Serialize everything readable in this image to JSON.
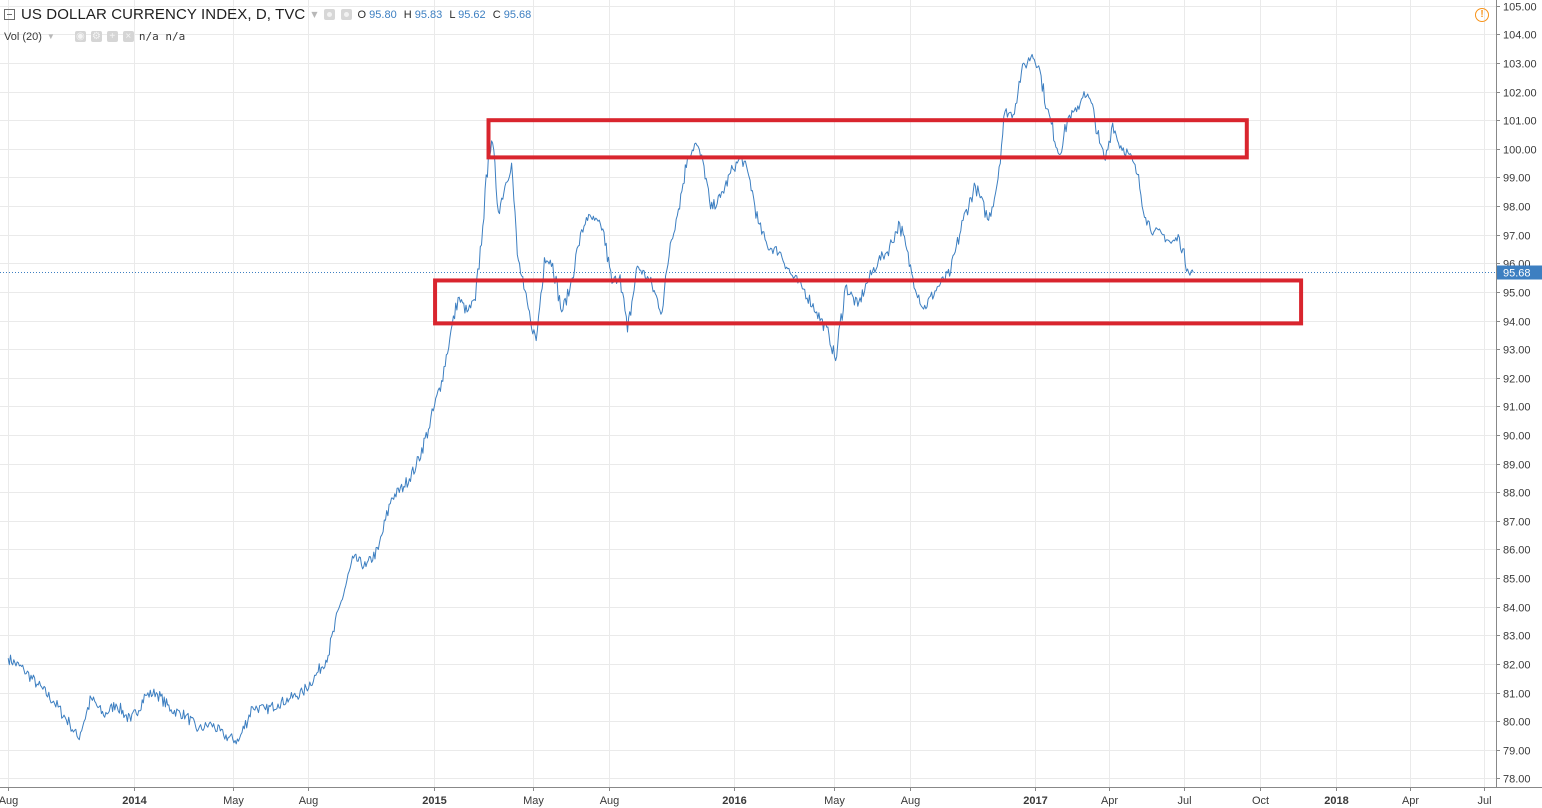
{
  "header": {
    "title": "US DOLLAR CURRENCY INDEX, D, TVC",
    "ohlc": {
      "o_label": "O",
      "o_value": "95.80",
      "h_label": "H",
      "h_value": "95.83",
      "l_label": "L",
      "l_value": "95.62",
      "c_label": "C",
      "c_value": "95.68"
    }
  },
  "volume": {
    "label": "Vol (20)",
    "values": "n/a n/a"
  },
  "icons": {
    "collapse": "minus-box-icon",
    "dropdown": "caret-down-icon",
    "alert": "exclamation-circle-icon",
    "settings": "gear-icon",
    "add": "plus-icon",
    "remove": "close-icon"
  },
  "colors": {
    "line": "#3d7fc1",
    "box": "#d9252e",
    "grid": "#eaeaea",
    "price_tag": "#3d7fc1",
    "alert": "#f7931a"
  },
  "chart_data": {
    "type": "line",
    "title": "US DOLLAR CURRENCY INDEX, D, TVC",
    "xlabel": "",
    "ylabel": "",
    "ylim": [
      77.7,
      105.2
    ],
    "y_ticks": [
      "105.00",
      "104.00",
      "103.00",
      "102.00",
      "101.00",
      "100.00",
      "99.00",
      "98.00",
      "97.00",
      "96.00",
      "95.00",
      "94.00",
      "93.00",
      "92.00",
      "91.00",
      "90.00",
      "89.00",
      "88.00",
      "87.00",
      "86.00",
      "85.00",
      "84.00",
      "83.00",
      "82.00",
      "81.00",
      "80.00",
      "79.00",
      "78.00"
    ],
    "x_ticks": [
      "Aug",
      "2014",
      "May",
      "Aug",
      "2015",
      "May",
      "Aug",
      "2016",
      "May",
      "Aug",
      "2017",
      "Apr",
      "Jul",
      "Oct",
      "2018",
      "Apr",
      "Jul"
    ],
    "x_tick_dates": [
      "2013-08-01",
      "2014-01-01",
      "2014-05-01",
      "2014-08-01",
      "2015-01-01",
      "2015-05-01",
      "2015-08-01",
      "2016-01-01",
      "2016-05-01",
      "2016-08-01",
      "2017-01-01",
      "2017-04-01",
      "2017-07-01",
      "2017-10-01",
      "2018-01-01",
      "2018-04-01",
      "2018-07-01"
    ],
    "last_price": 95.68,
    "last_price_label": "95.68",
    "grid": true,
    "series": [
      {
        "x": [
          "2013-08-01",
          "2013-08-20",
          "2013-09-05",
          "2013-09-25",
          "2013-10-15",
          "2013-10-25",
          "2013-11-10",
          "2013-11-25",
          "2013-12-10",
          "2013-12-28",
          "2014-01-15",
          "2014-01-28",
          "2014-02-15",
          "2014-03-05",
          "2014-03-20",
          "2014-04-05",
          "2014-04-20",
          "2014-05-08",
          "2014-05-25",
          "2014-06-10",
          "2014-06-25",
          "2014-07-10",
          "2014-07-25",
          "2014-08-10",
          "2014-08-25",
          "2014-09-10",
          "2014-09-25",
          "2014-10-10",
          "2014-10-25",
          "2014-11-10",
          "2014-11-25",
          "2014-12-10",
          "2014-12-25",
          "2015-01-10",
          "2015-01-20",
          "2015-01-30",
          "2015-02-10",
          "2015-02-20",
          "2015-03-01",
          "2015-03-08",
          "2015-03-13",
          "2015-03-20",
          "2015-03-28",
          "2015-04-05",
          "2015-04-12",
          "2015-04-20",
          "2015-04-28",
          "2015-05-05",
          "2015-05-15",
          "2015-05-25",
          "2015-06-05",
          "2015-06-15",
          "2015-06-25",
          "2015-07-05",
          "2015-07-15",
          "2015-07-25",
          "2015-08-05",
          "2015-08-15",
          "2015-08-24",
          "2015-09-05",
          "2015-09-20",
          "2015-10-05",
          "2015-10-15",
          "2015-10-25",
          "2015-11-05",
          "2015-11-15",
          "2015-11-25",
          "2015-12-03",
          "2015-12-15",
          "2015-12-30",
          "2016-01-10",
          "2016-01-20",
          "2016-01-30",
          "2016-02-10",
          "2016-02-25",
          "2016-03-10",
          "2016-03-25",
          "2016-04-10",
          "2016-04-25",
          "2016-05-03",
          "2016-05-15",
          "2016-05-30",
          "2016-06-10",
          "2016-06-24",
          "2016-07-05",
          "2016-07-20",
          "2016-08-05",
          "2016-08-18",
          "2016-09-05",
          "2016-09-20",
          "2016-10-05",
          "2016-10-20",
          "2016-11-05",
          "2016-11-15",
          "2016-11-25",
          "2016-12-05",
          "2016-12-15",
          "2016-12-28",
          "2017-01-05",
          "2017-01-15",
          "2017-01-30",
          "2017-02-10",
          "2017-02-20",
          "2017-03-01",
          "2017-03-10",
          "2017-03-20",
          "2017-03-27",
          "2017-04-05",
          "2017-04-12",
          "2017-04-25",
          "2017-05-05",
          "2017-05-15",
          "2017-05-25",
          "2017-06-05",
          "2017-06-15",
          "2017-06-25",
          "2017-07-05",
          "2017-07-12"
        ],
        "y": [
          82.2,
          81.8,
          81.3,
          80.7,
          79.9,
          79.4,
          80.8,
          80.2,
          80.6,
          80.0,
          80.9,
          81.0,
          80.4,
          80.2,
          79.7,
          79.9,
          79.5,
          79.3,
          80.5,
          80.4,
          80.6,
          80.8,
          81.0,
          81.6,
          82.3,
          84.2,
          85.7,
          85.4,
          86.0,
          87.8,
          88.2,
          88.9,
          90.2,
          91.9,
          93.4,
          94.8,
          94.3,
          94.7,
          97.3,
          99.8,
          100.2,
          97.8,
          98.7,
          99.5,
          96.3,
          95.1,
          94.0,
          93.3,
          96.2,
          96.0,
          94.3,
          95.1,
          96.6,
          97.6,
          97.5,
          97.2,
          95.3,
          95.6,
          93.6,
          95.9,
          95.4,
          94.3,
          96.7,
          97.9,
          99.7,
          100.2,
          99.4,
          97.9,
          98.3,
          99.3,
          99.7,
          98.9,
          97.4,
          96.6,
          96.4,
          95.6,
          95.1,
          94.3,
          93.5,
          92.6,
          95.2,
          94.5,
          95.3,
          96.1,
          96.4,
          97.4,
          95.5,
          94.4,
          95.2,
          95.7,
          97.5,
          98.7,
          97.5,
          98.7,
          101.3,
          101.2,
          102.7,
          103.3,
          102.9,
          101.4,
          99.8,
          101.1,
          101.3,
          102.0,
          101.6,
          100.2,
          99.6,
          100.9,
          100.2,
          99.8,
          99.1,
          97.6,
          97.1,
          97.0,
          96.7,
          96.9,
          95.8,
          95.68
        ]
      }
    ],
    "annotations": [
      {
        "type": "rectangle",
        "x0": "2015-03-08",
        "x1": "2017-09-15",
        "y0": 99.7,
        "y1": 101.0
      },
      {
        "type": "rectangle",
        "x0": "2015-01-02",
        "x1": "2017-11-20",
        "y0": 93.9,
        "y1": 95.4
      }
    ]
  }
}
